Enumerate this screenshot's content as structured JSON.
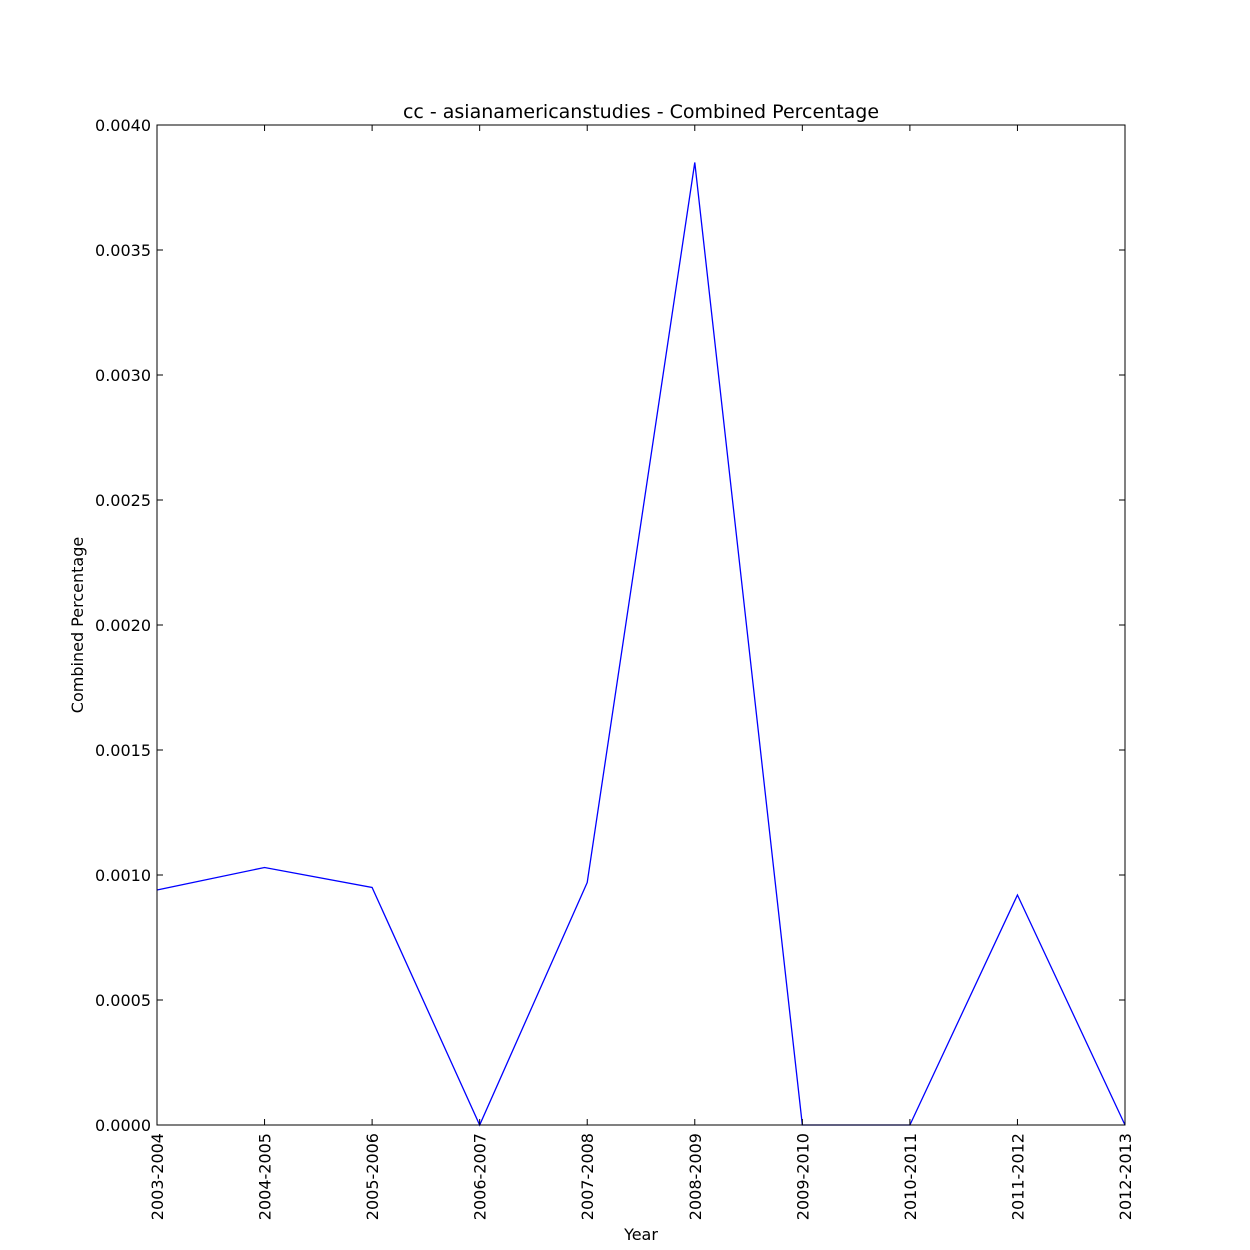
{
  "chart_data": {
    "type": "line",
    "title": "cc - asianamericanstudies - Combined Percentage",
    "xlabel": "Year",
    "ylabel": "Combined Percentage",
    "categories": [
      "2003-2004",
      "2004-2005",
      "2005-2006",
      "2006-2007",
      "2007-2008",
      "2008-2009",
      "2009-2010",
      "2010-2011",
      "2011-2012",
      "2012-2013"
    ],
    "series": [
      {
        "values": [
          0.00094,
          0.00103,
          0.00095,
          0.0,
          0.00097,
          0.00385,
          0.0,
          0.0,
          0.00092,
          0.0
        ],
        "color": "#0000ff"
      }
    ],
    "ylim": [
      0,
      0.004
    ],
    "yticks": [
      "0.0000",
      "0.0005",
      "0.0010",
      "0.0015",
      "0.0020",
      "0.0025",
      "0.0030",
      "0.0035",
      "0.0040"
    ],
    "grid": false,
    "legend": "none"
  }
}
